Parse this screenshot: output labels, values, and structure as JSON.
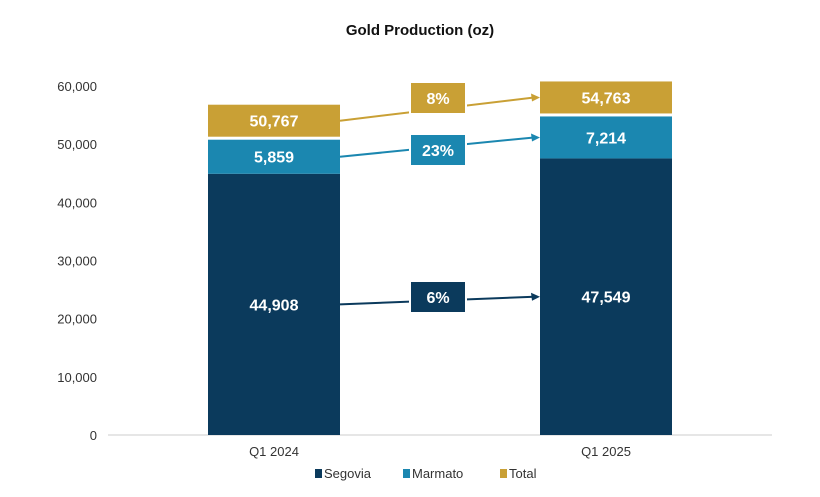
{
  "chart_data": {
    "type": "bar",
    "stacked": true,
    "title": "Gold Production (oz)",
    "xlabel": "",
    "ylabel": "",
    "categories": [
      "Q1 2024",
      "Q1 2025"
    ],
    "series": [
      {
        "name": "Segovia",
        "values": [
          44908,
          47549
        ],
        "color": "#0B3A5C"
      },
      {
        "name": "Marmato",
        "values": [
          5859,
          7214
        ],
        "color": "#1B87B0"
      },
      {
        "name": "Total",
        "values": [
          50767,
          54763
        ],
        "color": "#C9A035"
      }
    ],
    "value_labels": {
      "Segovia": [
        "44,908",
        "47,549"
      ],
      "Marmato": [
        "5,859",
        "7,214"
      ],
      "Total": [
        "50,767",
        "54,763"
      ]
    },
    "changes": [
      {
        "series": "Total",
        "label": "8%"
      },
      {
        "series": "Marmato",
        "label": "23%"
      },
      {
        "series": "Segovia",
        "label": "6%"
      }
    ],
    "ylim": [
      0,
      60000
    ],
    "yticks": [
      0,
      10000,
      20000,
      30000,
      40000,
      50000,
      60000
    ],
    "ytick_labels": [
      "0",
      "10,000",
      "20,000",
      "30,000",
      "40,000",
      "50,000",
      "60,000"
    ],
    "grid": false,
    "legend": "bottom"
  }
}
